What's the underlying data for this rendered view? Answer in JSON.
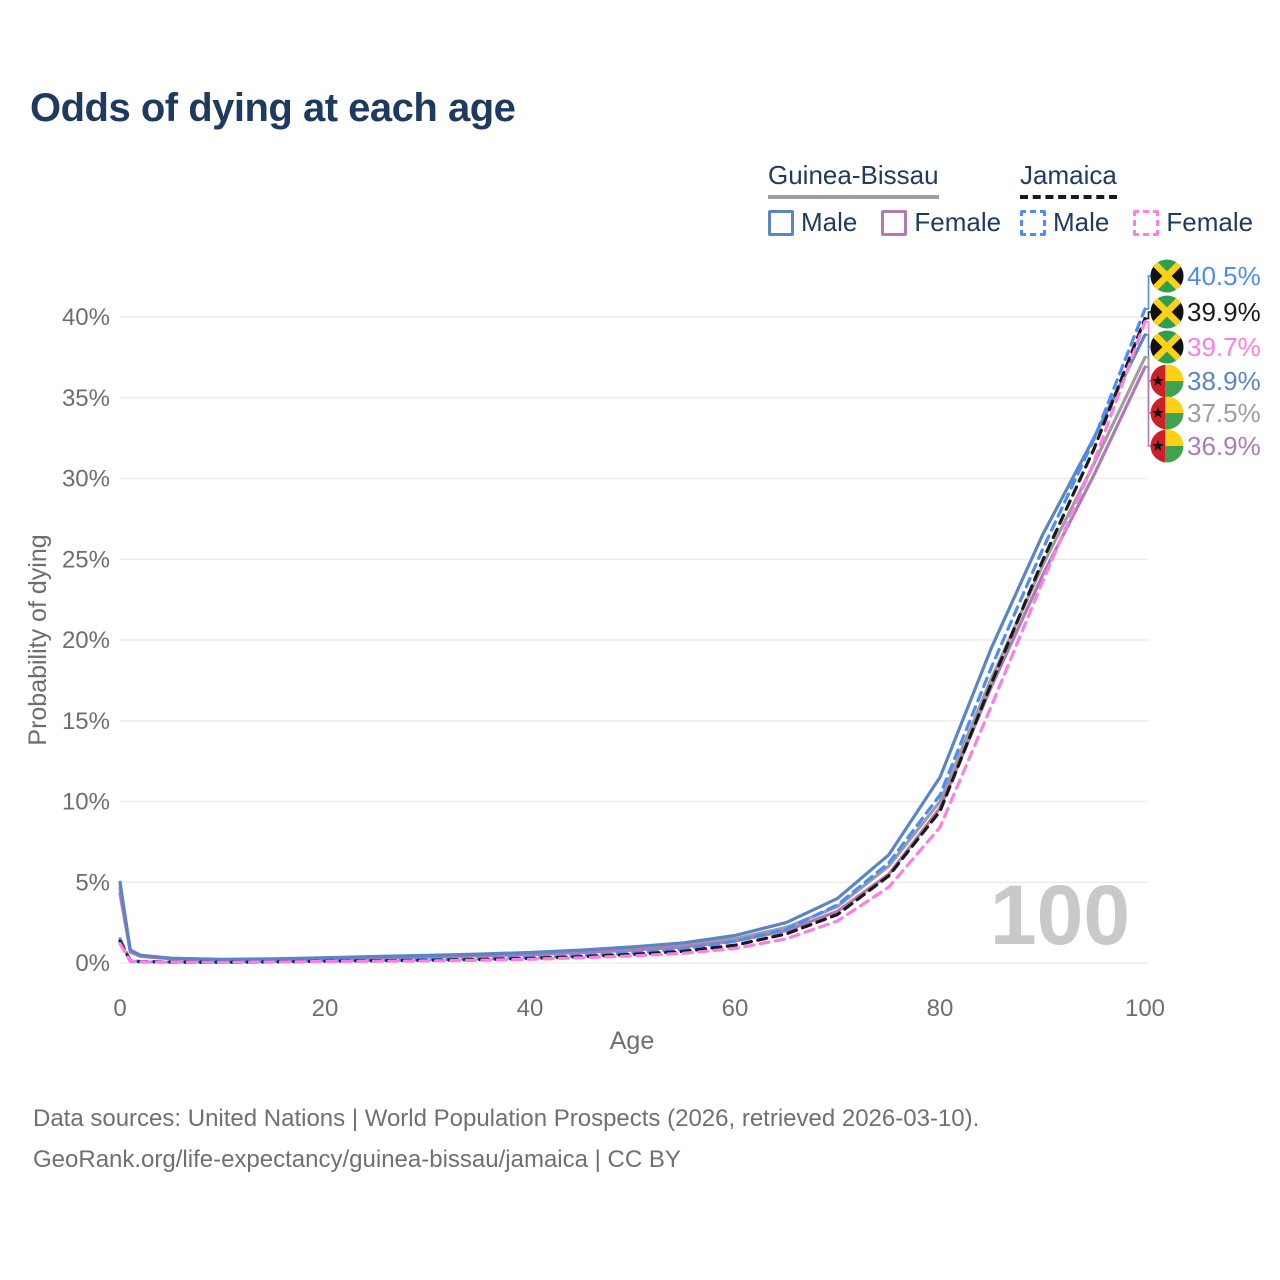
{
  "title": "Odds of dying at each age",
  "watermark_age": "100",
  "colors": {
    "title": "#1e3a5f",
    "axis_text": "#6e6e6e",
    "grid": "#ebebeb",
    "watermark": "#c9c9c9",
    "footer_text": "#707070"
  },
  "legend": {
    "groups": [
      {
        "name": "Guinea-Bissau",
        "line_style": "solid",
        "underline_color": "#9e9e9e",
        "items": [
          {
            "label": "Male",
            "color": "#5b84c4"
          },
          {
            "label": "Female",
            "color": "#b07ab5"
          }
        ]
      },
      {
        "name": "Jamaica",
        "line_style": "dashed",
        "underline_color": "#1a1a1a",
        "items": [
          {
            "label": "Male",
            "color": "#4e8df5"
          },
          {
            "label": "Female",
            "color": "#fb7fe5"
          }
        ]
      }
    ]
  },
  "flags": {
    "jamaica": {
      "green": "#2e9e4f",
      "gold": "#fdd117",
      "black": "#111111"
    },
    "guinea_bissau": {
      "red": "#ce2028",
      "yellow": "#fcd116",
      "green": "#3fa24c",
      "star": "#111111"
    }
  },
  "chart_data": {
    "type": "line",
    "title": "Odds of dying at each age",
    "xlabel": "Age",
    "ylabel": "Probability of dying",
    "xlim": [
      0,
      100
    ],
    "ylim_pct": [
      0,
      42
    ],
    "x_ticks": [
      0,
      20,
      40,
      60,
      80,
      100
    ],
    "y_ticks_pct": [
      0,
      5,
      10,
      15,
      20,
      25,
      30,
      35,
      40
    ],
    "grid": "horizontal",
    "ages": [
      0,
      1,
      2,
      5,
      10,
      15,
      20,
      25,
      30,
      35,
      40,
      45,
      50,
      55,
      60,
      65,
      70,
      75,
      80,
      85,
      90,
      95,
      100
    ],
    "series": [
      {
        "id": "jamaica-male",
        "name": "Jamaica — Male",
        "country": "Jamaica",
        "sex": "Male",
        "flag": "jamaica",
        "dashed": true,
        "color": "#4e8df5",
        "end_label": "40.5%",
        "end_value_pct": 40.5,
        "values_pct": [
          1.5,
          0.14,
          0.09,
          0.06,
          0.05,
          0.09,
          0.14,
          0.17,
          0.21,
          0.26,
          0.34,
          0.46,
          0.62,
          0.85,
          1.35,
          2.1,
          3.6,
          6.2,
          10.4,
          18.3,
          25.6,
          32.4,
          40.5
        ]
      },
      {
        "id": "jamaica-both",
        "name": "Jamaica — Both sexes",
        "country": "Jamaica",
        "sex": "Both",
        "flag": "jamaica",
        "dashed": true,
        "color": "#1a1a1a",
        "end_label": "39.9%",
        "end_value_pct": 39.9,
        "values_pct": [
          1.35,
          0.12,
          0.08,
          0.055,
          0.045,
          0.07,
          0.11,
          0.14,
          0.17,
          0.21,
          0.28,
          0.39,
          0.53,
          0.72,
          1.1,
          1.8,
          3.0,
          5.4,
          9.4,
          17.3,
          24.9,
          31.8,
          39.9
        ]
      },
      {
        "id": "jamaica-female",
        "name": "Jamaica — Female",
        "country": "Jamaica",
        "sex": "Female",
        "flag": "jamaica",
        "dashed": true,
        "color": "#fb7fe5",
        "end_label": "39.7%",
        "end_value_pct": 39.7,
        "values_pct": [
          1.2,
          0.11,
          0.07,
          0.05,
          0.04,
          0.06,
          0.09,
          0.11,
          0.13,
          0.17,
          0.23,
          0.32,
          0.44,
          0.6,
          0.9,
          1.5,
          2.6,
          4.7,
          8.4,
          15.9,
          23.6,
          31.0,
          39.7
        ]
      },
      {
        "id": "guinea-bissau-male",
        "name": "Guinea-Bissau — Male",
        "country": "Guinea-Bissau",
        "sex": "Male",
        "flag": "guinea_bissau",
        "dashed": false,
        "color": "#5b84c4",
        "end_label": "38.9%",
        "end_value_pct": 38.9,
        "values_pct": [
          5.0,
          0.8,
          0.48,
          0.3,
          0.22,
          0.26,
          0.33,
          0.4,
          0.47,
          0.55,
          0.65,
          0.8,
          1.0,
          1.25,
          1.7,
          2.5,
          4.0,
          6.7,
          11.5,
          19.5,
          26.5,
          32.5,
          38.9
        ]
      },
      {
        "id": "guinea-bissau-both",
        "name": "Guinea-Bissau — Both sexes",
        "country": "Guinea-Bissau",
        "sex": "Both",
        "flag": "guinea_bissau",
        "dashed": false,
        "color": "#9e9e9e",
        "end_label": "37.5%",
        "end_value_pct": 37.5,
        "values_pct": [
          4.65,
          0.74,
          0.44,
          0.28,
          0.2,
          0.23,
          0.29,
          0.35,
          0.41,
          0.49,
          0.58,
          0.72,
          0.9,
          1.12,
          1.5,
          2.2,
          3.5,
          6.0,
          10.0,
          17.6,
          24.6,
          30.9,
          37.5
        ]
      },
      {
        "id": "guinea-bissau-female",
        "name": "Guinea-Bissau — Female",
        "country": "Guinea-Bissau",
        "sex": "Female",
        "flag": "guinea_bissau",
        "dashed": false,
        "color": "#b07ab5",
        "end_label": "36.9%",
        "end_value_pct": 36.9,
        "values_pct": [
          4.3,
          0.68,
          0.41,
          0.26,
          0.19,
          0.21,
          0.26,
          0.31,
          0.37,
          0.44,
          0.52,
          0.65,
          0.8,
          1.0,
          1.35,
          2.0,
          3.2,
          5.5,
          9.6,
          17.1,
          24.0,
          30.2,
          36.9
        ]
      }
    ]
  },
  "footer": {
    "line1": "Data sources: United Nations | World Population Prospects (2026, retrieved 2026-03-10).",
    "line2": "GeoRank.org/life-expectancy/guinea-bissau/jamaica | CC BY"
  }
}
